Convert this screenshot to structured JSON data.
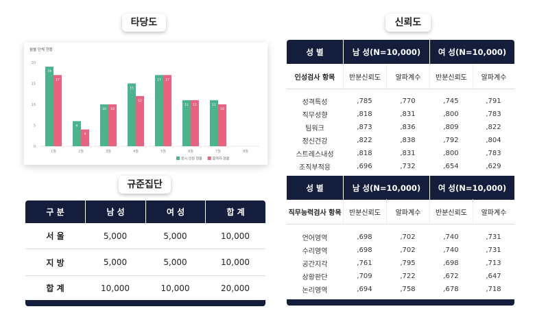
{
  "validity_label": "타당도",
  "norm_label": "규준집단",
  "reliability_label": "신뢰도",
  "chart_data": {
    "type": "bar",
    "title": "월별 단체 현황",
    "categories": [
      "1월",
      "2월",
      "3월",
      "4월",
      "5월",
      "6월",
      "7월",
      "8월"
    ],
    "series": [
      {
        "name": "응시 인원 현황",
        "color": "#4cb38f",
        "values": [
          19,
          6,
          10,
          15,
          17,
          11,
          11,
          null
        ]
      },
      {
        "name": "합격자 현황",
        "color": "#e8637f",
        "values": [
          17,
          4,
          10,
          12,
          17,
          11,
          10,
          null
        ]
      }
    ],
    "ylim": [
      0,
      20
    ],
    "yticks": [
      0,
      5,
      10,
      15,
      20
    ],
    "grid": false
  },
  "norm_table": {
    "header": [
      "구 분",
      "남 성",
      "여 성",
      "합 계"
    ],
    "rows": [
      [
        "서 울",
        "5,000",
        "5,000",
        "10,000"
      ],
      [
        "지 방",
        "5,000",
        "5,000",
        "10,000"
      ],
      [
        "합 계",
        "10,000",
        "10,000",
        "20,000"
      ]
    ]
  },
  "reliability": [
    {
      "header": [
        "성 별",
        "남 성(N=10,000)",
        "여 성(N=10,000)"
      ],
      "subheader": [
        "인성검사 항목",
        "반분신뢰도",
        "알파계수",
        "반분신뢰도",
        "알파계수"
      ],
      "rows": [
        [
          "성격특성",
          ",785",
          ",770",
          ",745",
          ",791"
        ],
        [
          "직무성향",
          ",818",
          ",831",
          ",800",
          ",783"
        ],
        [
          "팀워크",
          ",873",
          ",836",
          ",809",
          ",822"
        ],
        [
          "정신건강",
          ",822",
          ",838",
          ",792",
          ",804"
        ],
        [
          "스트레스내성",
          ",818",
          ",831",
          ",800",
          ",783"
        ],
        [
          "조직부적응",
          ",696",
          ",732",
          ",654",
          ",629"
        ]
      ]
    },
    {
      "header": [
        "성 별",
        "남 성(N=10,000)",
        "여 성(N=10,000)"
      ],
      "subheader": [
        "직무능력검사 항목",
        "반분신뢰도",
        "알파계수",
        "반분신뢰도",
        "알파계수"
      ],
      "rows": [
        [
          "언어영역",
          ",698",
          ",702",
          ",740",
          ",731"
        ],
        [
          "수리영역",
          ",698",
          ",702",
          ",740",
          ",731"
        ],
        [
          "공간지각",
          ",761",
          ",795",
          ",698",
          ",713"
        ],
        [
          "상황판단",
          ",709",
          ",722",
          ",672",
          ",647"
        ],
        [
          "논리영역",
          ",694",
          ",758",
          ",678",
          ",718"
        ]
      ]
    }
  ]
}
